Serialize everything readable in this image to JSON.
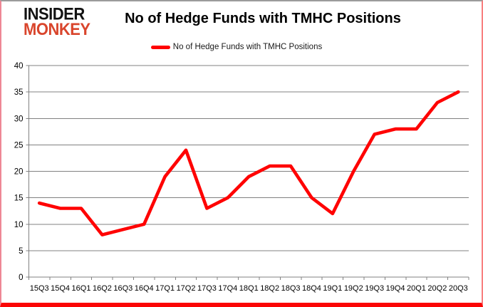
{
  "logo": {
    "line1": "INSIDER",
    "line2": "MONKEY"
  },
  "title": "No of Hedge Funds with TMHC Positions",
  "legend": {
    "label": "No of Hedge Funds with TMHC Positions"
  },
  "colors": {
    "series": "#ff0000",
    "logo_accent": "#d9452c",
    "grid": "#808080",
    "axis": "#808080",
    "tick_text": "#000000",
    "frame_bottom": "#fb0505",
    "frame_top": "#9b9b9b"
  },
  "chart_data": {
    "type": "line",
    "title": "No of Hedge Funds with TMHC Positions",
    "categories": [
      "15Q3",
      "15Q4",
      "16Q1",
      "16Q2",
      "16Q3",
      "16Q4",
      "17Q1",
      "17Q2",
      "17Q3",
      "17Q4",
      "18Q1",
      "18Q2",
      "18Q3",
      "18Q4",
      "19Q1",
      "19Q2",
      "19Q3",
      "19Q4",
      "20Q1",
      "20Q2",
      "20Q3"
    ],
    "series": [
      {
        "name": "No of Hedge Funds with TMHC Positions",
        "color": "#ff0000",
        "values": [
          14,
          13,
          13,
          8,
          9,
          10,
          19,
          24,
          13,
          15,
          19,
          21,
          21,
          15,
          12,
          20,
          27,
          28,
          28,
          33,
          35
        ]
      }
    ],
    "xlabel": "",
    "ylabel": "",
    "ylim": [
      0,
      40
    ],
    "ytick_step": 5,
    "grid": true,
    "legend_position": "top-center"
  }
}
